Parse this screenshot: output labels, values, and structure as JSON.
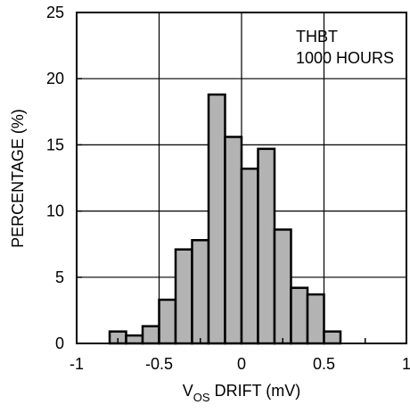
{
  "chart_data": {
    "type": "bar",
    "histogram": true,
    "annotation": [
      "THBT",
      "1000 HOURS"
    ],
    "xlabel": {
      "main": "V",
      "sub": "OS",
      "rest": " DRIFT (mV)"
    },
    "ylabel": "PERCENTAGE (%)",
    "xlim": [
      -1,
      1
    ],
    "ylim": [
      0,
      25
    ],
    "xticks": [
      -1,
      -0.75,
      -0.5,
      -0.25,
      0,
      0.25,
      0.5,
      0.75,
      1
    ],
    "xtick_labels": [
      "-1",
      "-0.5",
      "0",
      "0.5",
      "1"
    ],
    "xtick_label_values": [
      -1,
      -0.5,
      0,
      0.5,
      1
    ],
    "yticks": [
      0,
      5,
      10,
      15,
      20,
      25
    ],
    "ytick_labels": [
      "0",
      "5",
      "10",
      "15",
      "20",
      "25"
    ],
    "grid": true,
    "bin_width": 0.1,
    "bins": [
      {
        "x0": -0.8,
        "x1": -0.7,
        "value": 0.9
      },
      {
        "x0": -0.7,
        "x1": -0.6,
        "value": 0.6
      },
      {
        "x0": -0.6,
        "x1": -0.5,
        "value": 1.3
      },
      {
        "x0": -0.5,
        "x1": -0.4,
        "value": 3.3
      },
      {
        "x0": -0.4,
        "x1": -0.3,
        "value": 7.1
      },
      {
        "x0": -0.3,
        "x1": -0.2,
        "value": 7.8
      },
      {
        "x0": -0.2,
        "x1": -0.1,
        "value": 18.8
      },
      {
        "x0": -0.1,
        "x1": 0.0,
        "value": 15.6
      },
      {
        "x0": 0.0,
        "x1": 0.1,
        "value": 13.2
      },
      {
        "x0": 0.1,
        "x1": 0.2,
        "value": 14.7
      },
      {
        "x0": 0.2,
        "x1": 0.3,
        "value": 8.6
      },
      {
        "x0": 0.3,
        "x1": 0.4,
        "value": 4.2
      },
      {
        "x0": 0.4,
        "x1": 0.5,
        "value": 3.7
      },
      {
        "x0": 0.5,
        "x1": 0.6,
        "value": 0.9
      }
    ],
    "colors": {
      "bar_fill": "#b3b3b3",
      "bar_stroke": "#000000",
      "grid": "#000000"
    }
  }
}
